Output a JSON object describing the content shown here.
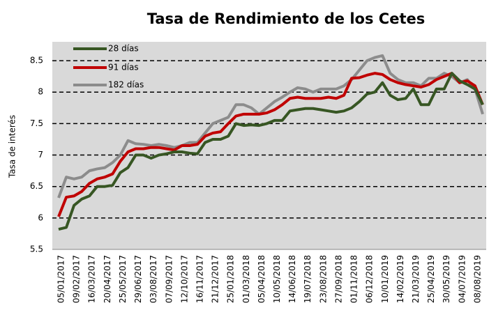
{
  "chart_data": {
    "type": "line",
    "title": "Tasa de Rendimiento de los Cetes",
    "y_label": "Tasa de interés",
    "categories": [
      "05/01/2017",
      null,
      "09/02/2017",
      null,
      "16/03/2017",
      null,
      "20/04/2017",
      null,
      "25/05/2017",
      null,
      "29/06/2017",
      null,
      "03/08/2017",
      null,
      "07/09/2017",
      null,
      "12/10/2017",
      null,
      "16/11/2017",
      null,
      "21/12/2017",
      null,
      "25/01/2018",
      null,
      "01/03/2018",
      null,
      "05/04/2018",
      null,
      "10/05/2018",
      null,
      "14/06/2018",
      null,
      "19/07/2018",
      null,
      "23/08/2018",
      null,
      "27/09/2018",
      null,
      "01/11/2018",
      null,
      "06/12/2018",
      null,
      "10/01/2019",
      null,
      "14/02/2019",
      null,
      "21/03/2019",
      null,
      "25/04/2019",
      null,
      "30/05/2019",
      null,
      "04/07/2019",
      null,
      "08/08/2019",
      null
    ],
    "series": [
      {
        "name": "28 días",
        "color": "#375623",
        "values": [
          5.82,
          5.85,
          6.2,
          6.3,
          6.35,
          6.5,
          6.5,
          6.52,
          6.72,
          6.8,
          7.0,
          7.0,
          6.95,
          7.0,
          7.02,
          7.05,
          7.05,
          7.03,
          7.02,
          7.2,
          7.25,
          7.25,
          7.3,
          7.5,
          7.47,
          7.48,
          7.47,
          7.5,
          7.55,
          7.55,
          7.7,
          7.72,
          7.74,
          7.74,
          7.72,
          7.7,
          7.68,
          7.7,
          7.75,
          7.85,
          7.97,
          8.0,
          8.15,
          7.95,
          7.88,
          7.9,
          8.05,
          7.8,
          7.8,
          8.05,
          8.05,
          8.3,
          8.18,
          8.12,
          8.05,
          7.8
        ]
      },
      {
        "name": "91 días",
        "color": "#c00000",
        "values": [
          6.02,
          6.33,
          6.35,
          6.42,
          6.55,
          6.62,
          6.65,
          6.7,
          6.9,
          7.05,
          7.1,
          7.1,
          7.12,
          7.12,
          7.1,
          7.08,
          7.15,
          7.15,
          7.17,
          7.3,
          7.35,
          7.37,
          7.5,
          7.62,
          7.65,
          7.65,
          7.65,
          7.67,
          7.72,
          7.8,
          7.9,
          7.92,
          7.9,
          7.9,
          7.9,
          7.92,
          7.9,
          7.95,
          8.22,
          8.23,
          8.27,
          8.3,
          8.28,
          8.2,
          8.15,
          8.12,
          8.1,
          8.08,
          8.12,
          8.2,
          8.25,
          8.3,
          8.15,
          8.18,
          8.1,
          7.8
        ]
      },
      {
        "name": "182 días",
        "color": "#8c8c8c",
        "values": [
          6.32,
          6.65,
          6.62,
          6.65,
          6.75,
          6.78,
          6.8,
          6.88,
          7.0,
          7.23,
          7.18,
          7.17,
          7.15,
          7.17,
          7.15,
          7.12,
          7.15,
          7.2,
          7.2,
          7.35,
          7.5,
          7.55,
          7.6,
          7.8,
          7.8,
          7.75,
          7.65,
          7.75,
          7.85,
          7.92,
          8.0,
          8.07,
          8.05,
          8.0,
          8.05,
          8.05,
          8.05,
          8.1,
          8.2,
          8.35,
          8.5,
          8.55,
          8.58,
          8.3,
          8.2,
          8.15,
          8.15,
          8.1,
          8.22,
          8.22,
          8.3,
          8.25,
          8.15,
          8.2,
          8.05,
          7.65
        ]
      }
    ],
    "ylim": [
      5.5,
      8.8
    ],
    "yticks": [
      5.5,
      6.0,
      6.5,
      7.0,
      7.5,
      8.0,
      8.5
    ],
    "grid": true,
    "background": "#d9d9d9",
    "legend": "upper-left"
  }
}
